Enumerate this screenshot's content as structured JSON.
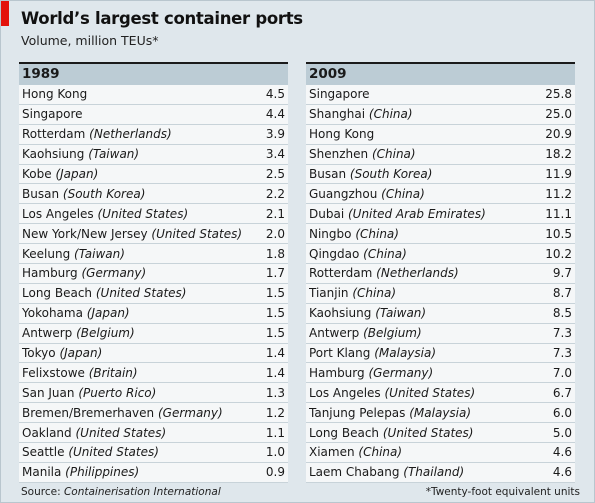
{
  "title": "World’s largest container ports",
  "subtitle": "Volume, million TEUs*",
  "accent_color": "#e3120b",
  "source_prefix": "Source: ",
  "source_publication": "Containerisation International",
  "footnote": "*Twenty-foot equivalent units",
  "chart_data": {
    "type": "table",
    "tables": [
      {
        "year": "1989",
        "rows": [
          {
            "port": "Hong Kong",
            "country": "",
            "value": "4.5"
          },
          {
            "port": "Singapore",
            "country": "",
            "value": "4.4"
          },
          {
            "port": "Rotterdam",
            "country": "(Netherlands)",
            "value": "3.9"
          },
          {
            "port": "Kaohsiung",
            "country": "(Taiwan)",
            "value": "3.4"
          },
          {
            "port": "Kobe",
            "country": "(Japan)",
            "value": "2.5"
          },
          {
            "port": "Busan",
            "country": "(South Korea)",
            "value": "2.2"
          },
          {
            "port": "Los Angeles",
            "country": "(United States)",
            "value": "2.1"
          },
          {
            "port": "New York/New Jersey",
            "country": "(United States)",
            "value": "2.0"
          },
          {
            "port": "Keelung",
            "country": "(Taiwan)",
            "value": "1.8"
          },
          {
            "port": "Hamburg",
            "country": "(Germany)",
            "value": "1.7"
          },
          {
            "port": "Long Beach",
            "country": "(United States)",
            "value": "1.5"
          },
          {
            "port": "Yokohama",
            "country": "(Japan)",
            "value": "1.5"
          },
          {
            "port": "Antwerp",
            "country": "(Belgium)",
            "value": "1.5"
          },
          {
            "port": "Tokyo",
            "country": "(Japan)",
            "value": "1.4"
          },
          {
            "port": "Felixstowe",
            "country": "(Britain)",
            "value": "1.4"
          },
          {
            "port": "San Juan",
            "country": "(Puerto Rico)",
            "value": "1.3"
          },
          {
            "port": "Bremen/Bremerhaven",
            "country": "(Germany)",
            "value": "1.2"
          },
          {
            "port": "Oakland",
            "country": "(United States)",
            "value": "1.1"
          },
          {
            "port": "Seattle",
            "country": "(United States)",
            "value": "1.0"
          },
          {
            "port": "Manila",
            "country": "(Philippines)",
            "value": "0.9"
          }
        ]
      },
      {
        "year": "2009",
        "rows": [
          {
            "port": "Singapore",
            "country": "",
            "value": "25.8"
          },
          {
            "port": "Shanghai",
            "country": "(China)",
            "value": "25.0"
          },
          {
            "port": "Hong Kong",
            "country": "",
            "value": "20.9"
          },
          {
            "port": "Shenzhen",
            "country": "(China)",
            "value": "18.2"
          },
          {
            "port": "Busan",
            "country": "(South Korea)",
            "value": "11.9"
          },
          {
            "port": "Guangzhou",
            "country": "(China)",
            "value": "11.2"
          },
          {
            "port": "Dubai",
            "country": "(United Arab Emirates)",
            "value": "11.1"
          },
          {
            "port": "Ningbo",
            "country": "(China)",
            "value": "10.5"
          },
          {
            "port": "Qingdao",
            "country": "(China)",
            "value": "10.2"
          },
          {
            "port": "Rotterdam",
            "country": "(Netherlands)",
            "value": "9.7"
          },
          {
            "port": "Tianjin",
            "country": "(China)",
            "value": "8.7"
          },
          {
            "port": "Kaohsiung",
            "country": "(Taiwan)",
            "value": "8.5"
          },
          {
            "port": "Antwerp",
            "country": "(Belgium)",
            "value": "7.3"
          },
          {
            "port": "Port Klang",
            "country": "(Malaysia)",
            "value": "7.3"
          },
          {
            "port": "Hamburg",
            "country": "(Germany)",
            "value": "7.0"
          },
          {
            "port": "Los Angeles",
            "country": "(United States)",
            "value": "6.7"
          },
          {
            "port": "Tanjung Pelepas",
            "country": "(Malaysia)",
            "value": "6.0"
          },
          {
            "port": "Long Beach",
            "country": "(United States)",
            "value": "5.0"
          },
          {
            "port": "Xiamen",
            "country": "(China)",
            "value": "4.6"
          },
          {
            "port": "Laem Chabang",
            "country": "(Thailand)",
            "value": "4.6"
          }
        ]
      }
    ]
  }
}
